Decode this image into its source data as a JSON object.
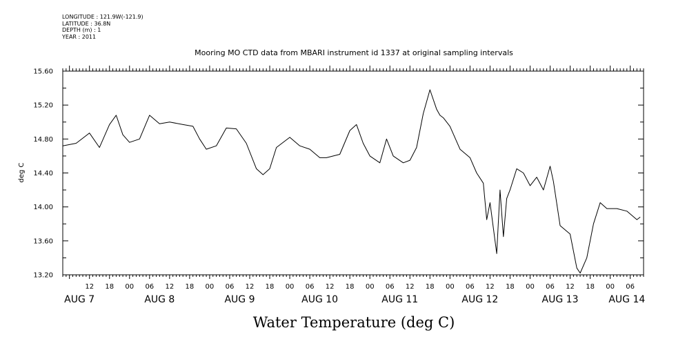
{
  "header": {
    "longitude": "LONGITUDE : 121.9W(-121.9)",
    "latitude": "LATITUDE : 36.8N",
    "depth": "DEPTH (m) : 1",
    "year": "YEAR : 2011"
  },
  "chart_data": {
    "type": "line",
    "title": "Mooring MO CTD data from MBARI instrument id 1337 at original sampling intervals",
    "xlabel": "Water Temperature (deg C)",
    "ylabel": "deg C",
    "ylim": [
      13.2,
      15.6
    ],
    "yticks": [
      "13.20",
      "13.60",
      "14.00",
      "14.40",
      "14.80",
      "15.20",
      "15.60"
    ],
    "xlim": [
      "2011-08-07T04:00",
      "2011-08-14T10:00"
    ],
    "hour_tick_labels": [
      "12",
      "18",
      "00",
      "06",
      "12",
      "18",
      "00",
      "06",
      "12",
      "18",
      "00",
      "06",
      "12",
      "18",
      "00",
      "06",
      "12",
      "18",
      "00",
      "06",
      "12",
      "18",
      "00",
      "06",
      "12",
      "18",
      "00",
      "06",
      "12",
      "18",
      "00",
      "06"
    ],
    "day_labels": [
      "AUG  7",
      "AUG  8",
      "AUG  9",
      "AUG 10",
      "AUG 11",
      "AUG 12",
      "AUG 13",
      "AUG 14"
    ],
    "x": [
      "2011-08-07T04:00",
      "2011-08-07T08:00",
      "2011-08-07T12:00",
      "2011-08-07T15:00",
      "2011-08-07T18:00",
      "2011-08-07T20:00",
      "2011-08-07T22:00",
      "2011-08-08T00:00",
      "2011-08-08T03:00",
      "2011-08-08T06:00",
      "2011-08-08T09:00",
      "2011-08-08T12:00",
      "2011-08-08T16:00",
      "2011-08-08T19:00",
      "2011-08-08T21:00",
      "2011-08-08T23:00",
      "2011-08-09T02:00",
      "2011-08-09T05:00",
      "2011-08-09T08:00",
      "2011-08-09T11:00",
      "2011-08-09T14:00",
      "2011-08-09T16:00",
      "2011-08-09T18:00",
      "2011-08-09T20:00",
      "2011-08-10T00:00",
      "2011-08-10T03:00",
      "2011-08-10T06:00",
      "2011-08-10T09:00",
      "2011-08-10T11:00",
      "2011-08-10T15:00",
      "2011-08-10T18:00",
      "2011-08-10T20:00",
      "2011-08-10T22:00",
      "2011-08-11T00:00",
      "2011-08-11T03:00",
      "2011-08-11T05:00",
      "2011-08-11T07:00",
      "2011-08-11T10:00",
      "2011-08-11T12:00",
      "2011-08-11T14:00",
      "2011-08-11T16:00",
      "2011-08-11T18:00",
      "2011-08-11T20:00",
      "2011-08-11T21:00",
      "2011-08-11T22:00",
      "2011-08-12T00:00",
      "2011-08-12T03:00",
      "2011-08-12T06:00",
      "2011-08-12T08:00",
      "2011-08-12T10:00",
      "2011-08-12T11:00",
      "2011-08-12T12:00",
      "2011-08-12T14:00",
      "2011-08-12T15:00",
      "2011-08-12T16:00",
      "2011-08-12T17:00",
      "2011-08-12T18:00",
      "2011-08-12T20:00",
      "2011-08-12T22:00",
      "2011-08-13T00:00",
      "2011-08-13T02:00",
      "2011-08-13T04:00",
      "2011-08-13T06:00",
      "2011-08-13T07:00",
      "2011-08-13T09:00",
      "2011-08-13T12:00",
      "2011-08-13T14:00",
      "2011-08-13T15:00",
      "2011-08-13T17:00",
      "2011-08-13T19:00",
      "2011-08-13T21:00",
      "2011-08-13T23:00",
      "2011-08-14T02:00",
      "2011-08-14T05:00",
      "2011-08-14T08:00",
      "2011-08-14T09:00"
    ],
    "series": [
      {
        "values": [
          14.72,
          14.75,
          14.87,
          14.7,
          14.97,
          15.08,
          14.85,
          14.76,
          14.8,
          15.08,
          14.98,
          15.0,
          14.97,
          14.95,
          14.8,
          14.68,
          14.72,
          14.93,
          14.92,
          14.75,
          14.45,
          14.38,
          14.45,
          14.7,
          14.82,
          14.72,
          14.68,
          14.58,
          14.58,
          14.62,
          14.9,
          14.97,
          14.75,
          14.6,
          14.52,
          14.8,
          14.6,
          14.52,
          14.55,
          14.7,
          15.1,
          15.38,
          15.15,
          15.08,
          15.05,
          14.95,
          14.68,
          14.58,
          14.4,
          14.28,
          13.85,
          14.05,
          13.45,
          14.2,
          13.65,
          14.1,
          14.2,
          14.45,
          14.4,
          14.25,
          14.35,
          14.2,
          14.48,
          14.3,
          13.78,
          13.68,
          13.28,
          13.22,
          13.4,
          13.8,
          14.05,
          13.98,
          13.98,
          13.95,
          13.85,
          13.88
        ]
      }
    ],
    "grid": false,
    "legend": "none"
  }
}
